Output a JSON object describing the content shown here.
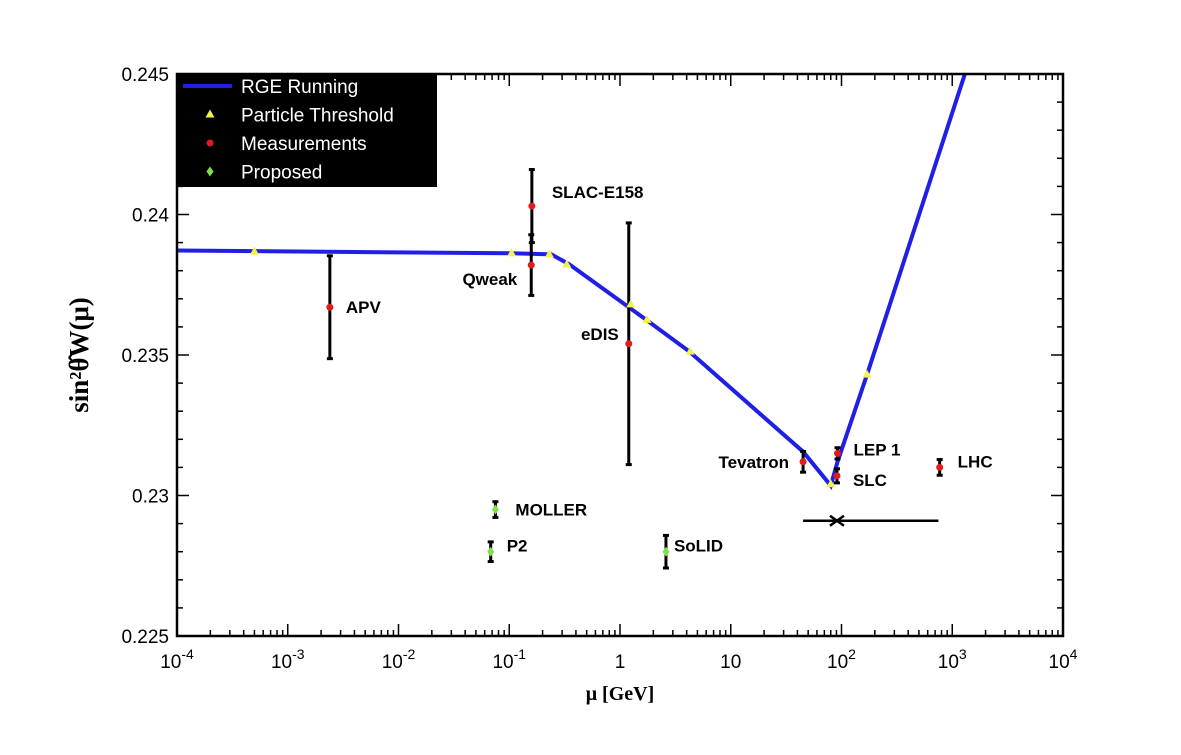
{
  "chart_data": {
    "type": "scatter",
    "xscale": "log",
    "xlim": [
      0.0001,
      10000
    ],
    "ylim": [
      0.225,
      0.245
    ],
    "xlabel": "μ [GeV]",
    "ylabel": "sin²θ̂W(μ)",
    "x_ticks": [
      {
        "value": 0.0001,
        "base": "10",
        "exp": "-4"
      },
      {
        "value": 0.001,
        "base": "10",
        "exp": "-3"
      },
      {
        "value": 0.01,
        "base": "10",
        "exp": "-2"
      },
      {
        "value": 0.1,
        "base": "10",
        "exp": "-1"
      },
      {
        "value": 1,
        "base": "1",
        "exp": ""
      },
      {
        "value": 10,
        "base": "10",
        "exp": ""
      },
      {
        "value": 100,
        "base": "10",
        "exp": "2"
      },
      {
        "value": 1000,
        "base": "10",
        "exp": "3"
      },
      {
        "value": 10000,
        "base": "10",
        "exp": "4"
      }
    ],
    "y_ticks": [
      {
        "value": 0.225,
        "label": "0.225"
      },
      {
        "value": 0.23,
        "label": "0.23"
      },
      {
        "value": 0.235,
        "label": "0.235"
      },
      {
        "value": 0.24,
        "label": "0.24"
      },
      {
        "value": 0.245,
        "label": "0.245"
      }
    ],
    "legend": {
      "position": "top-left",
      "entries": [
        {
          "label": "RGE Running",
          "marker": "line",
          "color": "#1f1fe6"
        },
        {
          "label": "Particle Threshold",
          "marker": "triangle",
          "color": "#f2f24c"
        },
        {
          "label": "Measurements",
          "marker": "circle",
          "color": "#e21b1b"
        },
        {
          "label": "Proposed",
          "marker": "diamond",
          "color": "#7ee04a"
        }
      ]
    },
    "series": [
      {
        "name": "RGE Running",
        "kind": "line",
        "color": "#1f1fe6",
        "points": [
          [
            0.0001,
            0.23872
          ],
          [
            0.105,
            0.23862
          ],
          [
            0.24,
            0.23858
          ],
          [
            0.35,
            0.23822
          ],
          [
            1.7,
            0.23627
          ],
          [
            4.2,
            0.23513
          ],
          [
            45,
            0.23156
          ],
          [
            80,
            0.23035
          ],
          [
            92,
            0.2312
          ],
          [
            170,
            0.2343
          ],
          [
            1350,
            0.2452
          ]
        ]
      },
      {
        "name": "Particle Threshold",
        "kind": "triangle",
        "color": "#f2f24c",
        "points": [
          [
            0.0005,
            0.23868
          ],
          [
            0.105,
            0.23862
          ],
          [
            0.23,
            0.23858
          ],
          [
            0.33,
            0.23822
          ],
          [
            1.25,
            0.2368
          ],
          [
            1.75,
            0.23625
          ],
          [
            4.3,
            0.23512
          ],
          [
            80,
            0.2304
          ],
          [
            170,
            0.2343
          ]
        ]
      },
      {
        "name": "Measurements",
        "kind": "circle",
        "color": "#e21b1b",
        "points": [
          {
            "label": "APV",
            "x": 0.0024,
            "y": 0.2367,
            "err": 0.00183,
            "label_dx": 16,
            "label_dy": 0
          },
          {
            "label": "Qweak",
            "x": 0.158,
            "y": 0.2382,
            "err": 0.00108,
            "label_dx": -14,
            "label_dy": 14,
            "anchor": "end"
          },
          {
            "label": "SLAC-E158",
            "x": 0.16,
            "y": 0.2403,
            "err": 0.0013,
            "label_dx": 20,
            "label_dy": -14
          },
          {
            "label": "eDIS",
            "x": 1.2,
            "y": 0.2354,
            "err": 0.0043,
            "label_dx": -10,
            "label_dy": -10,
            "anchor": "end"
          },
          {
            "label": "Tevatron",
            "x": 45,
            "y": 0.2312,
            "err": 0.00037,
            "label_dx": -14,
            "label_dy": 0,
            "anchor": "end"
          },
          {
            "label": "LEP 1",
            "x": 92,
            "y": 0.2315,
            "err": 0.0002,
            "label_dx": 16,
            "label_dy": -4
          },
          {
            "label": "SLC",
            "x": 91,
            "y": 0.2307,
            "err": 0.00025,
            "label_dx": 16,
            "label_dy": 4
          },
          {
            "label": "LHC",
            "x": 770,
            "y": 0.231,
            "err": 0.00028,
            "label_dx": 18,
            "label_dy": -6
          }
        ]
      },
      {
        "name": "Proposed",
        "kind": "diamond",
        "color": "#7ee04a",
        "points": [
          {
            "label": "MOLLER",
            "x": 0.075,
            "y": 0.2295,
            "err": 0.00028,
            "label_dx": 20,
            "label_dy": 0
          },
          {
            "label": "P2",
            "x": 0.068,
            "y": 0.228,
            "err": 0.00035,
            "label_dx": 16,
            "label_dy": -6
          },
          {
            "label": "SoLID",
            "x": 2.6,
            "y": 0.228,
            "err": 0.00058,
            "label_dx": 8,
            "label_dy": -6
          }
        ]
      }
    ],
    "extra": {
      "horizontal_band": {
        "x_from": 45,
        "x_to": 750,
        "y": 0.2291,
        "marker_x": 91
      }
    }
  }
}
